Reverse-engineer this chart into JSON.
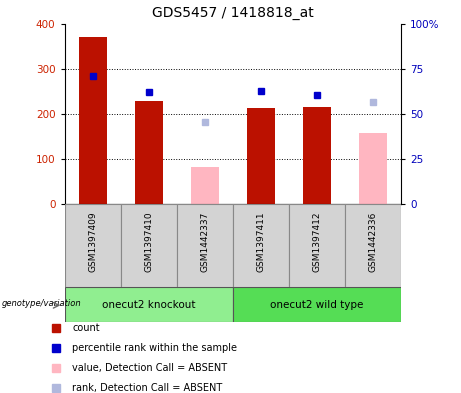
{
  "title": "GDS5457 / 1418818_at",
  "samples": [
    "GSM1397409",
    "GSM1397410",
    "GSM1442337",
    "GSM1397411",
    "GSM1397412",
    "GSM1442336"
  ],
  "group_labels": [
    "onecut2 knockout",
    "onecut2 wild type"
  ],
  "group_colors": [
    "#90ee90",
    "#55dd55"
  ],
  "group_sizes": [
    3,
    3
  ],
  "count_values": [
    370,
    228,
    null,
    213,
    216,
    null
  ],
  "count_absent_values": [
    null,
    null,
    83,
    null,
    null,
    157
  ],
  "percentile_values_left": [
    283,
    248,
    null,
    250,
    242,
    null
  ],
  "percentile_absent_values_left": [
    null,
    null,
    182,
    null,
    null,
    226
  ],
  "ylim_left": [
    0,
    400
  ],
  "ylim_right": [
    0,
    100
  ],
  "yticks_left": [
    0,
    100,
    200,
    300,
    400
  ],
  "yticks_right": [
    0,
    25,
    50,
    75,
    100
  ],
  "ytick_labels_right": [
    "0",
    "25",
    "50",
    "75",
    "100%"
  ],
  "left_tick_color": "#cc2200",
  "right_tick_color": "#0000bb",
  "count_color": "#bb1100",
  "count_absent_color": "#ffb6c1",
  "percentile_color": "#0000cc",
  "percentile_absent_color": "#b0b8dd",
  "grid_color": "#000000",
  "legend_items": [
    {
      "label": "count",
      "color": "#bb1100"
    },
    {
      "label": "percentile rank within the sample",
      "color": "#0000cc"
    },
    {
      "label": "value, Detection Call = ABSENT",
      "color": "#ffb6c1"
    },
    {
      "label": "rank, Detection Call = ABSENT",
      "color": "#b0b8dd"
    }
  ],
  "genotype_label": "genotype/variation",
  "cell_bg": "#d3d3d3",
  "cell_border": "#888888"
}
